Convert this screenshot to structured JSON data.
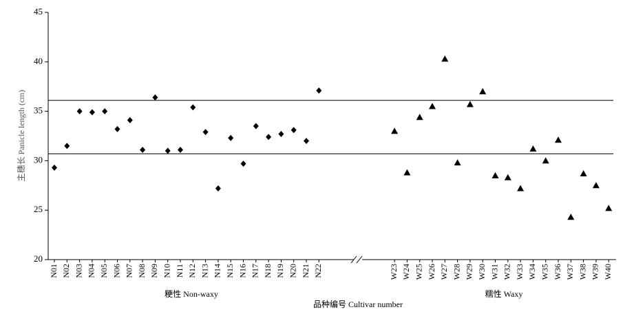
{
  "chart_data": {
    "type": "scatter",
    "y_label": "主穗长 Panicle length (cm)",
    "x_label": "品种编号 Cultivar number",
    "categories": [
      "N01",
      "N02",
      "N03",
      "N04",
      "N05",
      "N06",
      "N07",
      "N08",
      "N09",
      "N10",
      "N11",
      "N12",
      "N13",
      "N14",
      "N15",
      "N16",
      "N17",
      "N18",
      "N19",
      "N20",
      "N21",
      "N22",
      null,
      null,
      null,
      null,
      null,
      "W23",
      "W24",
      "W25",
      "W26",
      "W27",
      "W28",
      "W29",
      "W30",
      "W31",
      "W32",
      "W33",
      "W34",
      "W35",
      "W36",
      "W37",
      "W38",
      "W39",
      "W40"
    ],
    "series": [
      {
        "name": "粳性 Non-waxy",
        "marker": "diamond",
        "color": "#000000",
        "values": [
          29.3,
          31.5,
          35.0,
          34.9,
          35.0,
          33.2,
          34.1,
          31.1,
          36.4,
          31.0,
          31.1,
          35.4,
          32.9,
          27.2,
          32.3,
          29.7,
          33.5,
          32.4,
          32.7,
          33.1,
          32.0,
          37.1,
          null,
          null,
          null,
          null,
          null,
          null,
          null,
          null,
          null,
          null,
          null,
          null,
          null,
          null,
          null,
          null,
          null,
          null,
          null,
          null,
          null,
          null,
          null
        ]
      },
      {
        "name": "糯性 Waxy",
        "marker": "triangle",
        "color": "#000000",
        "values": [
          null,
          null,
          null,
          null,
          null,
          null,
          null,
          null,
          null,
          null,
          null,
          null,
          null,
          null,
          null,
          null,
          null,
          null,
          null,
          null,
          null,
          null,
          null,
          null,
          null,
          null,
          null,
          33.0,
          28.8,
          34.4,
          35.5,
          40.3,
          29.8,
          35.7,
          37.0,
          28.5,
          28.3,
          27.2,
          31.2,
          30.0,
          32.1,
          24.3,
          28.7,
          27.5,
          25.2
        ]
      }
    ],
    "hlines": [
      36.1,
      30.7
    ],
    "ylim": [
      20,
      45
    ],
    "yticks": [
      20,
      25,
      30,
      35,
      40,
      45
    ]
  }
}
